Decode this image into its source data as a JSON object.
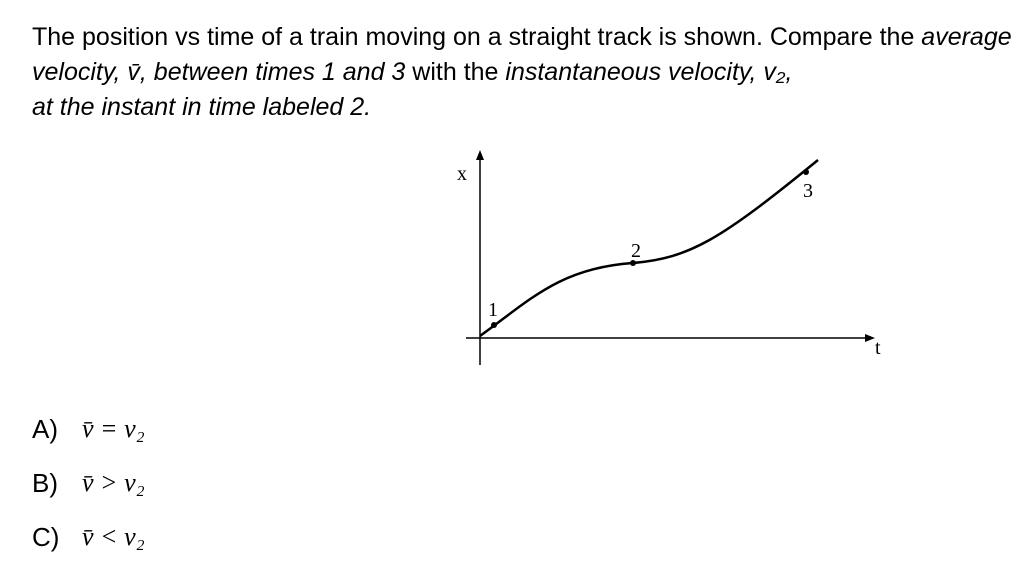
{
  "question": {
    "parts": [
      {
        "text": "The position vs time of a train moving on a straight track is shown. Compare the ",
        "style": "normal"
      },
      {
        "text": "average velocity, v̄, between times 1 and 3",
        "style": "italic"
      },
      {
        "text": " with the ",
        "style": "normal"
      },
      {
        "text": "instantaneous velocity, v₂,",
        "style": "italic"
      },
      {
        "text": "at the instant in time labeled 2.",
        "style": "italic"
      }
    ]
  },
  "graph": {
    "y_axis_label": "x",
    "x_axis_label": "t",
    "point_labels": [
      "1",
      "2",
      "3"
    ]
  },
  "options": [
    {
      "letter": "A)",
      "expression": "v̄ = v₂"
    },
    {
      "letter": "B)",
      "expression": "v̄ > v₂"
    },
    {
      "letter": "C)",
      "expression": "v̄ < v₂"
    }
  ]
}
